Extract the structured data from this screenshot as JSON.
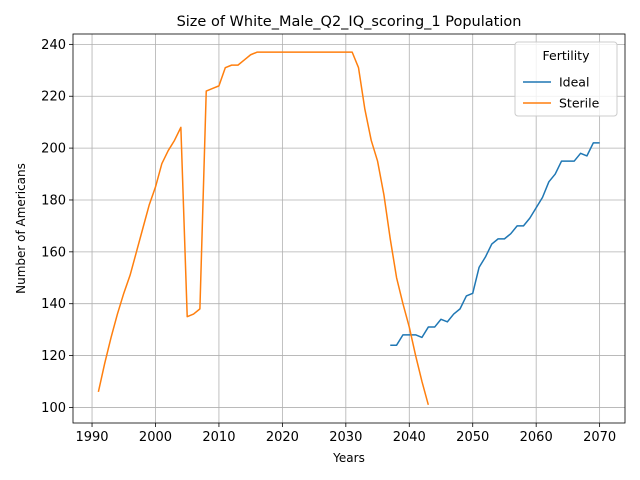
{
  "chart_data": {
    "type": "line",
    "title": "Size of White_Male_Q2_IQ_scoring_1 Population",
    "xlabel": "Years",
    "ylabel": "Number of Americans",
    "xlim": [
      1987,
      2074
    ],
    "ylim": [
      94,
      244
    ],
    "xticks": [
      1990,
      2000,
      2010,
      2020,
      2030,
      2040,
      2050,
      2060,
      2070
    ],
    "yticks": [
      100,
      120,
      140,
      160,
      180,
      200,
      220,
      240
    ],
    "grid": true,
    "legend": {
      "title": "Fertility",
      "placement": "top-right"
    },
    "series": [
      {
        "name": "Ideal",
        "color": "#1f77b4",
        "x": [
          2037,
          2038,
          2039,
          2040,
          2041,
          2042,
          2043,
          2044,
          2045,
          2046,
          2047,
          2048,
          2049,
          2050,
          2051,
          2052,
          2053,
          2054,
          2055,
          2056,
          2057,
          2058,
          2059,
          2060,
          2061,
          2062,
          2063,
          2064,
          2065,
          2066,
          2067,
          2068,
          2069,
          2070
        ],
        "y": [
          124,
          124,
          128,
          128,
          128,
          127,
          131,
          131,
          134,
          133,
          136,
          138,
          143,
          144,
          154,
          158,
          163,
          165,
          165,
          167,
          170,
          170,
          173,
          177,
          181,
          187,
          190,
          195,
          195,
          195,
          198,
          197,
          202,
          202
        ]
      },
      {
        "name": "Sterile",
        "color": "#ff7f0e",
        "x": [
          1991,
          1992,
          1993,
          1994,
          1995,
          1996,
          1997,
          1998,
          1999,
          2000,
          2001,
          2002,
          2003,
          2004,
          2005,
          2006,
          2007,
          2008,
          2009,
          2010,
          2011,
          2012,
          2013,
          2014,
          2015,
          2016,
          2017,
          2018,
          2019,
          2020,
          2021,
          2022,
          2023,
          2024,
          2025,
          2026,
          2027,
          2028,
          2029,
          2030,
          2031,
          2032,
          2033,
          2034,
          2035,
          2036,
          2037,
          2038,
          2039,
          2040,
          2041,
          2042,
          2043
        ],
        "y": [
          106,
          117,
          127,
          136,
          144,
          151,
          160,
          169,
          178,
          185,
          194,
          199,
          203,
          208,
          135,
          136,
          138,
          222,
          223,
          224,
          231,
          232,
          232,
          234,
          236,
          237,
          237,
          237,
          237,
          237,
          237,
          237,
          237,
          237,
          237,
          237,
          237,
          237,
          237,
          237,
          237,
          231,
          215,
          203,
          195,
          182,
          165,
          150,
          140,
          131,
          120,
          110,
          101
        ]
      }
    ]
  }
}
